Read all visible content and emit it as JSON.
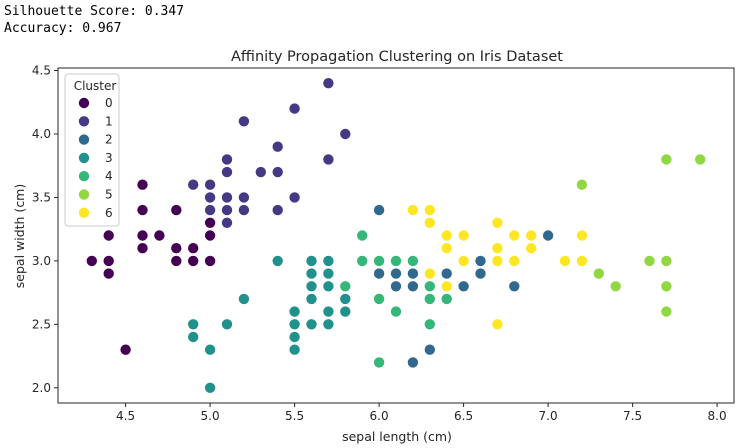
{
  "output": {
    "silhouette_line": "Silhouette Score: 0.347",
    "accuracy_line": "Accuracy: 0.967"
  },
  "chart_data": {
    "type": "scatter",
    "title": "Affinity Propagation Clustering on Iris Dataset",
    "xlabel": "sepal length (cm)",
    "ylabel": "sepal width (cm)",
    "xlim": [
      4.1,
      8.1
    ],
    "ylim": [
      1.88,
      4.52
    ],
    "xticks": [
      4.5,
      5.0,
      5.5,
      6.0,
      6.5,
      7.0,
      7.5,
      8.0
    ],
    "xtick_labels": [
      "4.5",
      "5.0",
      "5.5",
      "6.0",
      "6.5",
      "7.0",
      "7.5",
      "8.0"
    ],
    "yticks": [
      2.0,
      2.5,
      3.0,
      3.5,
      4.0,
      4.5
    ],
    "ytick_labels": [
      "2.0",
      "2.5",
      "3.0",
      "3.5",
      "4.0",
      "4.5"
    ],
    "grid": false,
    "legend": {
      "title": "Cluster",
      "placement": "top-left"
    },
    "series": [
      {
        "name": "0",
        "color": "#440154",
        "points": [
          [
            4.3,
            3.0
          ],
          [
            4.4,
            3.2
          ],
          [
            4.4,
            3.0
          ],
          [
            4.4,
            2.9
          ],
          [
            4.5,
            2.3
          ],
          [
            4.6,
            3.6
          ],
          [
            4.6,
            3.4
          ],
          [
            4.6,
            3.2
          ],
          [
            4.6,
            3.1
          ],
          [
            4.7,
            3.2
          ],
          [
            4.8,
            3.4
          ],
          [
            4.8,
            3.1
          ],
          [
            4.8,
            3.0
          ],
          [
            4.9,
            3.1
          ],
          [
            4.9,
            3.0
          ],
          [
            5.0,
            3.3
          ],
          [
            5.0,
            3.2
          ],
          [
            5.0,
            3.0
          ]
        ]
      },
      {
        "name": "1",
        "color": "#443983",
        "points": [
          [
            4.9,
            3.6
          ],
          [
            5.0,
            3.6
          ],
          [
            5.0,
            3.5
          ],
          [
            5.0,
            3.4
          ],
          [
            5.1,
            3.8
          ],
          [
            5.1,
            3.7
          ],
          [
            5.1,
            3.5
          ],
          [
            5.1,
            3.4
          ],
          [
            5.1,
            3.3
          ],
          [
            5.2,
            4.1
          ],
          [
            5.2,
            3.5
          ],
          [
            5.2,
            3.4
          ],
          [
            5.3,
            3.7
          ],
          [
            5.4,
            3.9
          ],
          [
            5.4,
            3.7
          ],
          [
            5.4,
            3.4
          ],
          [
            5.5,
            4.2
          ],
          [
            5.5,
            3.5
          ],
          [
            5.7,
            4.4
          ],
          [
            5.7,
            3.8
          ],
          [
            5.8,
            4.0
          ]
        ]
      },
      {
        "name": "2",
        "color": "#31688e",
        "points": [
          [
            6.0,
            3.4
          ],
          [
            6.0,
            2.9
          ],
          [
            6.1,
            3.0
          ],
          [
            6.1,
            2.9
          ],
          [
            6.1,
            2.8
          ],
          [
            6.2,
            2.9
          ],
          [
            6.2,
            2.8
          ],
          [
            6.2,
            2.2
          ],
          [
            6.3,
            2.5
          ],
          [
            6.3,
            2.3
          ],
          [
            6.4,
            2.9
          ],
          [
            6.5,
            2.8
          ],
          [
            6.6,
            3.0
          ],
          [
            6.6,
            2.9
          ],
          [
            6.7,
            3.1
          ],
          [
            6.7,
            3.0
          ],
          [
            6.8,
            2.8
          ],
          [
            7.0,
            3.2
          ]
        ]
      },
      {
        "name": "3",
        "color": "#21918c",
        "points": [
          [
            4.9,
            2.5
          ],
          [
            4.9,
            2.4
          ],
          [
            5.0,
            2.3
          ],
          [
            5.0,
            2.0
          ],
          [
            5.1,
            2.5
          ],
          [
            5.2,
            2.7
          ],
          [
            5.4,
            3.0
          ],
          [
            5.5,
            2.6
          ],
          [
            5.5,
            2.5
          ],
          [
            5.5,
            2.4
          ],
          [
            5.5,
            2.3
          ],
          [
            5.6,
            3.0
          ],
          [
            5.6,
            2.9
          ],
          [
            5.6,
            2.8
          ],
          [
            5.6,
            2.7
          ],
          [
            5.6,
            2.5
          ],
          [
            5.7,
            3.0
          ],
          [
            5.7,
            2.9
          ],
          [
            5.7,
            2.8
          ],
          [
            5.7,
            2.6
          ],
          [
            5.7,
            2.5
          ],
          [
            5.8,
            2.7
          ],
          [
            5.8,
            2.6
          ]
        ]
      },
      {
        "name": "4",
        "color": "#35b779",
        "points": [
          [
            5.8,
            2.8
          ],
          [
            5.9,
            3.2
          ],
          [
            5.9,
            3.0
          ],
          [
            6.0,
            3.0
          ],
          [
            6.0,
            2.7
          ],
          [
            6.0,
            2.2
          ],
          [
            6.1,
            3.0
          ],
          [
            6.1,
            2.6
          ],
          [
            6.2,
            3.0
          ],
          [
            6.3,
            2.8
          ],
          [
            6.3,
            2.7
          ],
          [
            6.3,
            2.5
          ],
          [
            6.4,
            2.8
          ],
          [
            6.4,
            2.7
          ]
        ]
      },
      {
        "name": "5",
        "color": "#90d743",
        "points": [
          [
            7.2,
            3.6
          ],
          [
            7.3,
            2.9
          ],
          [
            7.4,
            2.8
          ],
          [
            7.6,
            3.0
          ],
          [
            7.7,
            3.8
          ],
          [
            7.7,
            3.0
          ],
          [
            7.7,
            2.8
          ],
          [
            7.7,
            2.6
          ],
          [
            7.9,
            3.8
          ]
        ]
      },
      {
        "name": "6",
        "color": "#fde725",
        "points": [
          [
            6.2,
            3.4
          ],
          [
            6.3,
            3.4
          ],
          [
            6.3,
            3.3
          ],
          [
            6.3,
            2.9
          ],
          [
            6.4,
            3.2
          ],
          [
            6.4,
            3.1
          ],
          [
            6.4,
            2.8
          ],
          [
            6.5,
            3.2
          ],
          [
            6.5,
            3.0
          ],
          [
            6.7,
            3.3
          ],
          [
            6.7,
            3.1
          ],
          [
            6.7,
            3.0
          ],
          [
            6.7,
            2.5
          ],
          [
            6.8,
            3.2
          ],
          [
            6.8,
            3.0
          ],
          [
            6.9,
            3.2
          ],
          [
            6.9,
            3.1
          ],
          [
            7.1,
            3.0
          ],
          [
            7.2,
            3.2
          ],
          [
            7.2,
            3.0
          ]
        ]
      }
    ]
  }
}
